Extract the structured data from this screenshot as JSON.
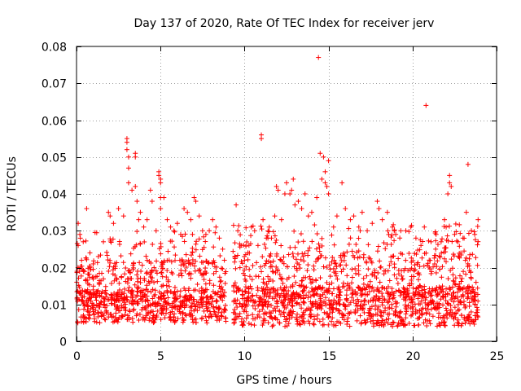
{
  "chart_data": {
    "type": "scatter",
    "title": "Day 137 of 2020, Rate Of TEC Index for receiver jerv",
    "xlabel": "GPS time / hours",
    "ylabel": "ROTI / TECUs",
    "xlim": [
      0,
      25
    ],
    "ylim": [
      0,
      0.08
    ],
    "x_ticks": [
      0,
      5,
      10,
      15,
      20,
      25
    ],
    "x_tick_labels": [
      "0",
      "5",
      "10",
      "15",
      "20",
      "25"
    ],
    "y_ticks": [
      0,
      0.01,
      0.02,
      0.03,
      0.04,
      0.05,
      0.06,
      0.07,
      0.08
    ],
    "y_tick_labels": [
      "0",
      "0.01",
      "0.02",
      "0.03",
      "0.04",
      "0.05",
      "0.06",
      "0.07",
      "0.08"
    ],
    "grid": true,
    "marker": "+",
    "series_color": "#ff0000",
    "series": [
      {
        "name": "ROTI",
        "points": [
          [
            0.1,
            0.032
          ],
          [
            0.1,
            0.026
          ],
          [
            0.2,
            0.029
          ],
          [
            0.3,
            0.022
          ],
          [
            0.4,
            0.027
          ],
          [
            0.6,
            0.036
          ],
          [
            0.8,
            0.024
          ],
          [
            1.0,
            0.021
          ],
          [
            1.3,
            0.023
          ],
          [
            1.6,
            0.027
          ],
          [
            1.9,
            0.035
          ],
          [
            2.0,
            0.034
          ],
          [
            2.2,
            0.032
          ],
          [
            2.5,
            0.036
          ],
          [
            2.8,
            0.034
          ],
          [
            3.0,
            0.055
          ],
          [
            3.0,
            0.054
          ],
          [
            3.0,
            0.052
          ],
          [
            3.1,
            0.05
          ],
          [
            3.1,
            0.047
          ],
          [
            3.1,
            0.043
          ],
          [
            3.3,
            0.041
          ],
          [
            3.5,
            0.051
          ],
          [
            3.5,
            0.05
          ],
          [
            3.5,
            0.042
          ],
          [
            3.6,
            0.038
          ],
          [
            3.7,
            0.033
          ],
          [
            3.8,
            0.035
          ],
          [
            4.0,
            0.031
          ],
          [
            4.2,
            0.033
          ],
          [
            4.4,
            0.041
          ],
          [
            4.5,
            0.038
          ],
          [
            4.9,
            0.046
          ],
          [
            4.9,
            0.045
          ],
          [
            5.0,
            0.044
          ],
          [
            5.0,
            0.043
          ],
          [
            5.0,
            0.039
          ],
          [
            5.0,
            0.036
          ],
          [
            5.2,
            0.039
          ],
          [
            5.4,
            0.033
          ],
          [
            5.6,
            0.031
          ],
          [
            5.8,
            0.03
          ],
          [
            6.0,
            0.032
          ],
          [
            6.2,
            0.029
          ],
          [
            6.4,
            0.036
          ],
          [
            6.6,
            0.035
          ],
          [
            6.8,
            0.033
          ],
          [
            6.9,
            0.029
          ],
          [
            7.0,
            0.039
          ],
          [
            7.1,
            0.038
          ],
          [
            7.3,
            0.034
          ],
          [
            7.5,
            0.03
          ],
          [
            7.7,
            0.029
          ],
          [
            7.9,
            0.03
          ],
          [
            8.1,
            0.033
          ],
          [
            8.3,
            0.031
          ],
          [
            8.5,
            0.028
          ],
          [
            8.7,
            0.025
          ],
          [
            8.8,
            0.022
          ],
          [
            9.5,
            0.037
          ],
          [
            9.6,
            0.03
          ],
          [
            9.8,
            0.026
          ],
          [
            10.0,
            0.022
          ],
          [
            10.2,
            0.024
          ],
          [
            10.4,
            0.031
          ],
          [
            10.6,
            0.03
          ],
          [
            10.8,
            0.026
          ],
          [
            11.0,
            0.056
          ],
          [
            11.0,
            0.055
          ],
          [
            11.1,
            0.033
          ],
          [
            11.3,
            0.028
          ],
          [
            11.6,
            0.028
          ],
          [
            11.8,
            0.034
          ],
          [
            11.9,
            0.042
          ],
          [
            12.0,
            0.041
          ],
          [
            12.2,
            0.033
          ],
          [
            12.4,
            0.04
          ],
          [
            12.5,
            0.043
          ],
          [
            12.7,
            0.04
          ],
          [
            12.8,
            0.041
          ],
          [
            12.9,
            0.044
          ],
          [
            13.0,
            0.037
          ],
          [
            13.2,
            0.038
          ],
          [
            13.4,
            0.036
          ],
          [
            13.6,
            0.04
          ],
          [
            13.8,
            0.034
          ],
          [
            14.0,
            0.035
          ],
          [
            14.3,
            0.039
          ],
          [
            14.4,
            0.077
          ],
          [
            14.5,
            0.051
          ],
          [
            14.6,
            0.044
          ],
          [
            14.7,
            0.05
          ],
          [
            14.8,
            0.046
          ],
          [
            14.8,
            0.043
          ],
          [
            14.9,
            0.042
          ],
          [
            15.0,
            0.049
          ],
          [
            15.0,
            0.04
          ],
          [
            15.3,
            0.031
          ],
          [
            15.5,
            0.034
          ],
          [
            15.8,
            0.043
          ],
          [
            16.0,
            0.036
          ],
          [
            16.3,
            0.033
          ],
          [
            16.5,
            0.034
          ],
          [
            16.8,
            0.031
          ],
          [
            17.0,
            0.035
          ],
          [
            17.3,
            0.03
          ],
          [
            17.6,
            0.032
          ],
          [
            17.9,
            0.038
          ],
          [
            18.0,
            0.036
          ],
          [
            18.2,
            0.033
          ],
          [
            18.5,
            0.035
          ],
          [
            18.8,
            0.031
          ],
          [
            19.0,
            0.029
          ],
          [
            19.3,
            0.03
          ],
          [
            19.6,
            0.03
          ],
          [
            19.9,
            0.031
          ],
          [
            20.2,
            0.028
          ],
          [
            20.5,
            0.026
          ],
          [
            20.7,
            0.031
          ],
          [
            20.8,
            0.064
          ],
          [
            21.1,
            0.027
          ],
          [
            21.4,
            0.029
          ],
          [
            21.7,
            0.027
          ],
          [
            21.9,
            0.033
          ],
          [
            22.0,
            0.031
          ],
          [
            22.1,
            0.04
          ],
          [
            22.2,
            0.045
          ],
          [
            22.2,
            0.043
          ],
          [
            22.3,
            0.042
          ],
          [
            22.5,
            0.029
          ],
          [
            22.7,
            0.027
          ],
          [
            23.0,
            0.028
          ],
          [
            23.2,
            0.035
          ],
          [
            23.3,
            0.048
          ],
          [
            23.5,
            0.03
          ],
          [
            23.7,
            0.029
          ],
          [
            23.9,
            0.033
          ]
        ],
        "dense_band": {
          "description": "continuous dense band of points",
          "segments": [
            {
              "x_range": [
                0.0,
                8.9
              ],
              "y_min": 0.005,
              "y_median": 0.011,
              "y_upper": 0.024
            },
            {
              "x_range": [
                9.3,
                23.9
              ],
              "y_min": 0.004,
              "y_median": 0.012,
              "y_upper": 0.026
            }
          ]
        }
      }
    ]
  }
}
